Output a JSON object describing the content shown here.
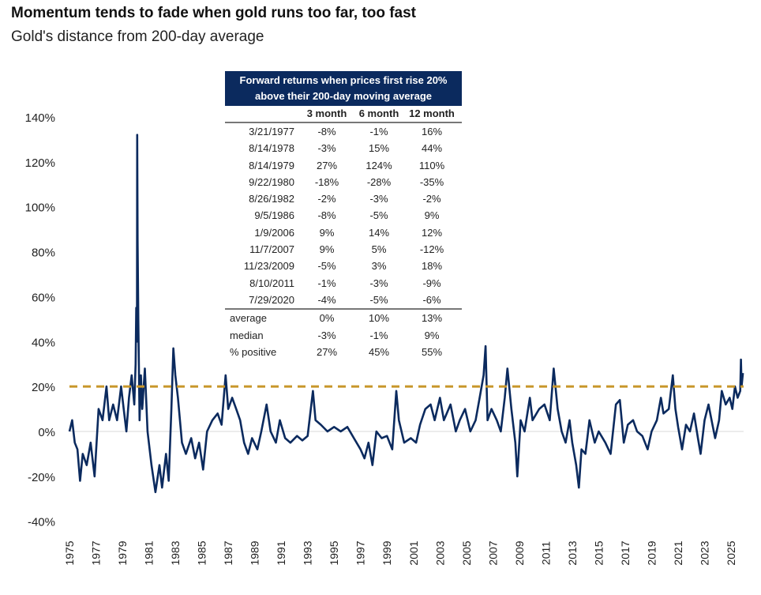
{
  "title": "Momentum tends to fade when gold runs too far, too fast",
  "subtitle": "Gold's distance from 200-day average",
  "table": {
    "header": "Forward returns when prices first rise 20% above their 200-day moving average",
    "columns": [
      "",
      "3 month",
      "6 month",
      "12 month"
    ],
    "rows": [
      [
        "3/21/1977",
        "-8%",
        "-1%",
        "16%"
      ],
      [
        "8/14/1978",
        "-3%",
        "15%",
        "44%"
      ],
      [
        "8/14/1979",
        "27%",
        "124%",
        "110%"
      ],
      [
        "9/22/1980",
        "-18%",
        "-28%",
        "-35%"
      ],
      [
        "8/26/1982",
        "-2%",
        "-3%",
        "-2%"
      ],
      [
        "9/5/1986",
        "-8%",
        "-5%",
        "9%"
      ],
      [
        "1/9/2006",
        "9%",
        "14%",
        "12%"
      ],
      [
        "11/7/2007",
        "9%",
        "5%",
        "-12%"
      ],
      [
        "11/23/2009",
        "-5%",
        "3%",
        "18%"
      ],
      [
        "8/10/2011",
        "-1%",
        "-3%",
        "-9%"
      ],
      [
        "7/29/2020",
        "-4%",
        "-5%",
        "-6%"
      ]
    ],
    "summary": [
      [
        "average",
        "0%",
        "10%",
        "13%"
      ],
      [
        "median",
        "-3%",
        "-1%",
        "9%"
      ],
      [
        "% positive",
        "27%",
        "45%",
        "55%"
      ]
    ]
  },
  "chart_data": {
    "type": "line",
    "title": "Gold's distance from 200-day average",
    "ylim": [
      -40,
      140
    ],
    "yticks": [
      140,
      120,
      100,
      80,
      60,
      40,
      20,
      0,
      -20,
      -40
    ],
    "ytick_labels": [
      "140%",
      "120%",
      "100%",
      "80%",
      "60%",
      "40%",
      "20%",
      "0%",
      "-20%",
      "-40%"
    ],
    "xlim": [
      1975,
      2025.95
    ],
    "xticks": [
      1975,
      1977,
      1979,
      1981,
      1983,
      1985,
      1987,
      1989,
      1991,
      1993,
      1995,
      1997,
      1999,
      2001,
      2003,
      2005,
      2007,
      2009,
      2011,
      2013,
      2015,
      2017,
      2019,
      2021,
      2023,
      2025
    ],
    "grid": false,
    "colors": {
      "series": "#0b2a5e",
      "threshold": "#c8962a",
      "zero": "#d9d9d9",
      "header": "#0b2a5e"
    },
    "threshold": 20,
    "series": [
      {
        "points": [
          [
            1975.0,
            0
          ],
          [
            1975.2,
            5
          ],
          [
            1975.4,
            -5
          ],
          [
            1975.6,
            -8
          ],
          [
            1975.8,
            -22
          ],
          [
            1976.0,
            -10
          ],
          [
            1976.3,
            -15
          ],
          [
            1976.6,
            -5
          ],
          [
            1976.9,
            -20
          ],
          [
            1977.2,
            10
          ],
          [
            1977.5,
            5
          ],
          [
            1977.8,
            20
          ],
          [
            1978.0,
            5
          ],
          [
            1978.3,
            12
          ],
          [
            1978.6,
            5
          ],
          [
            1978.9,
            20
          ],
          [
            1979.1,
            10
          ],
          [
            1979.3,
            0
          ],
          [
            1979.5,
            15
          ],
          [
            1979.7,
            25
          ],
          [
            1979.9,
            12
          ],
          [
            1980.0,
            30
          ],
          [
            1980.05,
            55
          ],
          [
            1980.1,
            40
          ],
          [
            1980.12,
            132
          ],
          [
            1980.15,
            85
          ],
          [
            1980.2,
            50
          ],
          [
            1980.3,
            5
          ],
          [
            1980.4,
            25
          ],
          [
            1980.5,
            10
          ],
          [
            1980.7,
            28
          ],
          [
            1980.9,
            0
          ],
          [
            1981.2,
            -15
          ],
          [
            1981.5,
            -27
          ],
          [
            1981.8,
            -15
          ],
          [
            1982.0,
            -25
          ],
          [
            1982.3,
            -10
          ],
          [
            1982.5,
            -22
          ],
          [
            1982.7,
            10
          ],
          [
            1982.85,
            37
          ],
          [
            1983.0,
            25
          ],
          [
            1983.2,
            15
          ],
          [
            1983.5,
            -5
          ],
          [
            1983.8,
            -10
          ],
          [
            1984.2,
            -3
          ],
          [
            1984.5,
            -12
          ],
          [
            1984.8,
            -5
          ],
          [
            1985.1,
            -17
          ],
          [
            1985.4,
            0
          ],
          [
            1985.8,
            5
          ],
          [
            1986.2,
            8
          ],
          [
            1986.5,
            3
          ],
          [
            1986.8,
            25
          ],
          [
            1987.0,
            10
          ],
          [
            1987.3,
            15
          ],
          [
            1987.6,
            10
          ],
          [
            1987.9,
            5
          ],
          [
            1988.2,
            -5
          ],
          [
            1988.5,
            -10
          ],
          [
            1988.8,
            -3
          ],
          [
            1989.2,
            -8
          ],
          [
            1989.5,
            0
          ],
          [
            1989.9,
            12
          ],
          [
            1990.2,
            0
          ],
          [
            1990.6,
            -5
          ],
          [
            1990.9,
            5
          ],
          [
            1991.3,
            -3
          ],
          [
            1991.7,
            -5
          ],
          [
            1992.2,
            -2
          ],
          [
            1992.6,
            -4
          ],
          [
            1993.0,
            -2
          ],
          [
            1993.4,
            18
          ],
          [
            1993.6,
            5
          ],
          [
            1994.0,
            3
          ],
          [
            1994.5,
            0
          ],
          [
            1995.0,
            2
          ],
          [
            1995.5,
            0
          ],
          [
            1996.0,
            2
          ],
          [
            1996.5,
            -3
          ],
          [
            1997.0,
            -8
          ],
          [
            1997.3,
            -12
          ],
          [
            1997.6,
            -5
          ],
          [
            1997.9,
            -15
          ],
          [
            1998.2,
            0
          ],
          [
            1998.6,
            -3
          ],
          [
            1999.0,
            -2
          ],
          [
            1999.4,
            -8
          ],
          [
            1999.7,
            18
          ],
          [
            1999.9,
            5
          ],
          [
            2000.3,
            -5
          ],
          [
            2000.8,
            -3
          ],
          [
            2001.2,
            -5
          ],
          [
            2001.5,
            3
          ],
          [
            2001.9,
            10
          ],
          [
            2002.3,
            12
          ],
          [
            2002.6,
            5
          ],
          [
            2003.0,
            15
          ],
          [
            2003.3,
            5
          ],
          [
            2003.8,
            12
          ],
          [
            2004.2,
            0
          ],
          [
            2004.5,
            5
          ],
          [
            2004.9,
            10
          ],
          [
            2005.3,
            0
          ],
          [
            2005.7,
            5
          ],
          [
            2006.0,
            15
          ],
          [
            2006.3,
            25
          ],
          [
            2006.45,
            38
          ],
          [
            2006.6,
            5
          ],
          [
            2006.9,
            10
          ],
          [
            2007.3,
            5
          ],
          [
            2007.6,
            0
          ],
          [
            2007.9,
            15
          ],
          [
            2008.1,
            28
          ],
          [
            2008.4,
            10
          ],
          [
            2008.7,
            -5
          ],
          [
            2008.85,
            -20
          ],
          [
            2009.1,
            5
          ],
          [
            2009.4,
            0
          ],
          [
            2009.8,
            15
          ],
          [
            2010.0,
            5
          ],
          [
            2010.5,
            10
          ],
          [
            2010.9,
            12
          ],
          [
            2011.3,
            5
          ],
          [
            2011.6,
            28
          ],
          [
            2011.9,
            10
          ],
          [
            2012.2,
            0
          ],
          [
            2012.5,
            -5
          ],
          [
            2012.8,
            5
          ],
          [
            2013.0,
            -5
          ],
          [
            2013.3,
            -15
          ],
          [
            2013.5,
            -25
          ],
          [
            2013.7,
            -8
          ],
          [
            2014.0,
            -10
          ],
          [
            2014.3,
            5
          ],
          [
            2014.7,
            -5
          ],
          [
            2015.0,
            0
          ],
          [
            2015.5,
            -5
          ],
          [
            2015.9,
            -10
          ],
          [
            2016.3,
            12
          ],
          [
            2016.6,
            14
          ],
          [
            2016.9,
            -5
          ],
          [
            2017.2,
            3
          ],
          [
            2017.6,
            5
          ],
          [
            2017.9,
            0
          ],
          [
            2018.3,
            -2
          ],
          [
            2018.7,
            -8
          ],
          [
            2019.0,
            0
          ],
          [
            2019.4,
            5
          ],
          [
            2019.7,
            15
          ],
          [
            2019.9,
            8
          ],
          [
            2020.3,
            10
          ],
          [
            2020.6,
            25
          ],
          [
            2020.8,
            10
          ],
          [
            2021.0,
            2
          ],
          [
            2021.3,
            -8
          ],
          [
            2021.6,
            3
          ],
          [
            2021.9,
            0
          ],
          [
            2022.2,
            8
          ],
          [
            2022.5,
            -3
          ],
          [
            2022.7,
            -10
          ],
          [
            2023.0,
            5
          ],
          [
            2023.3,
            12
          ],
          [
            2023.6,
            3
          ],
          [
            2023.8,
            -3
          ],
          [
            2024.1,
            5
          ],
          [
            2024.3,
            18
          ],
          [
            2024.6,
            12
          ],
          [
            2024.9,
            15
          ],
          [
            2025.1,
            10
          ],
          [
            2025.3,
            20
          ],
          [
            2025.5,
            15
          ],
          [
            2025.7,
            18
          ],
          [
            2025.75,
            32
          ],
          [
            2025.8,
            20
          ],
          [
            2025.9,
            26
          ]
        ]
      }
    ]
  }
}
